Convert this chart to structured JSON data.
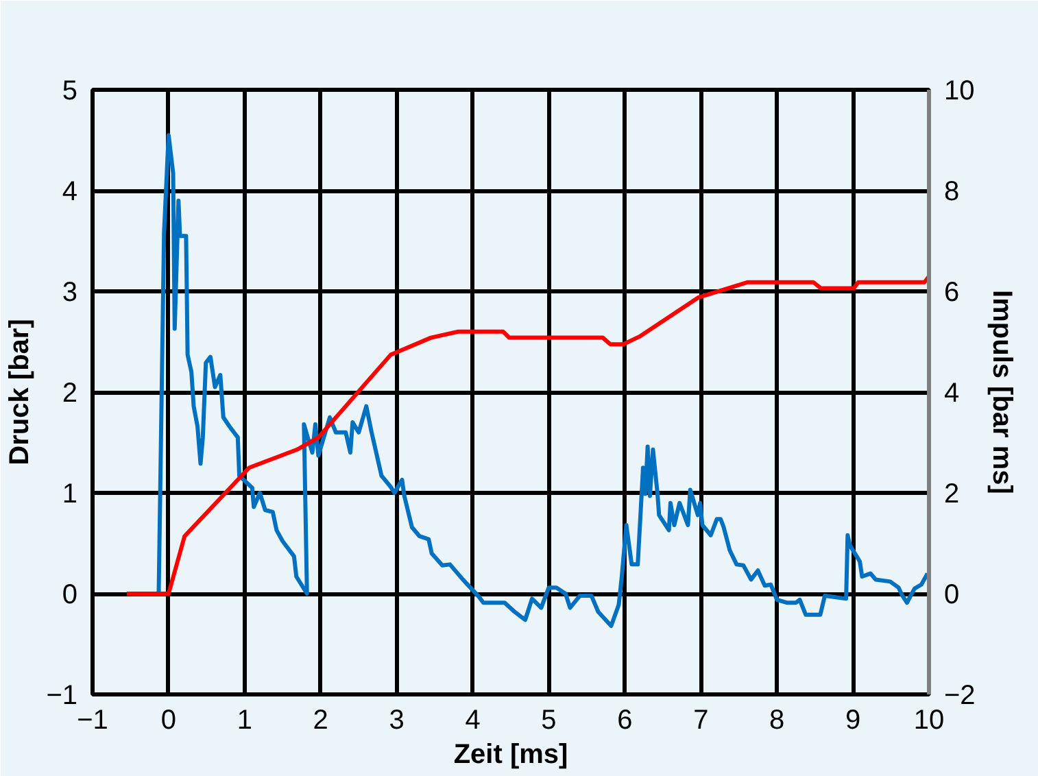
{
  "chart_data": {
    "type": "line",
    "xlabel": "Zeit [ms]",
    "ylabel": "Druck [bar]",
    "y2label": "Impuls [bar ms]",
    "xlim": [
      -1,
      10
    ],
    "xticks": [
      -1,
      0,
      1,
      2,
      3,
      4,
      5,
      6,
      7,
      8,
      9,
      10
    ],
    "ylim": [
      -1,
      5
    ],
    "yticks": [
      -1,
      0,
      1,
      2,
      3,
      4,
      5
    ],
    "y2lim": [
      -2,
      10
    ],
    "y2ticks": [
      -2,
      0,
      2,
      4,
      6,
      8,
      10
    ],
    "grid": true,
    "marker": "none",
    "line_style": "solid",
    "series": [
      {
        "color": "#0070c0",
        "x": [
          -0.55,
          -0.13,
          -0.06,
          0.0,
          0.06,
          0.08,
          0.13,
          0.15,
          0.23,
          0.25,
          0.3,
          0.33,
          0.38,
          0.42,
          0.45,
          0.49,
          0.55,
          0.61,
          0.68,
          0.72,
          0.8,
          0.91,
          0.93,
          1.1,
          1.12,
          1.2,
          1.27,
          1.37,
          1.42,
          1.5,
          1.65,
          1.68,
          1.82,
          1.78,
          1.83,
          1.89,
          1.93,
          1.97,
          2.12,
          2.2,
          2.33,
          2.39,
          2.42,
          2.5,
          2.6,
          2.67,
          2.8,
          2.92,
          2.97,
          3.07,
          3.1,
          3.2,
          3.3,
          3.42,
          3.46,
          3.6,
          3.7,
          3.87,
          4.08,
          4.14,
          4.42,
          4.55,
          4.69,
          4.78,
          4.9,
          5.0,
          5.1,
          5.22,
          5.28,
          5.41,
          5.56,
          5.65,
          5.82,
          5.92,
          5.96,
          6.02,
          6.09,
          6.17,
          6.24,
          6.27,
          6.3,
          6.33,
          6.37,
          6.43,
          6.45,
          6.58,
          6.6,
          6.65,
          6.72,
          6.83,
          6.86,
          6.96,
          6.99,
          7.02,
          7.13,
          7.21,
          7.26,
          7.3,
          7.38,
          7.47,
          7.56,
          7.66,
          7.75,
          7.84,
          7.92,
          8.0,
          8.13,
          8.25,
          8.3,
          8.38,
          8.57,
          8.63,
          8.91,
          8.93,
          8.96,
          9.09,
          9.12,
          9.23,
          9.3,
          9.49,
          9.6,
          9.65,
          9.71,
          9.81,
          9.9,
          9.98
        ],
        "values": [
          0,
          0,
          3.58,
          4.55,
          4.17,
          2.63,
          3.9,
          3.55,
          3.55,
          2.37,
          2.2,
          1.86,
          1.66,
          1.29,
          1.55,
          2.29,
          2.35,
          2.05,
          2.17,
          1.75,
          1.66,
          1.55,
          1.17,
          1.05,
          0.86,
          1.0,
          0.83,
          0.81,
          0.63,
          0.52,
          0.37,
          0.17,
          0,
          1.68,
          1.55,
          1.4,
          1.68,
          1.37,
          1.75,
          1.6,
          1.6,
          1.4,
          1.7,
          1.6,
          1.86,
          1.6,
          1.17,
          1.06,
          1.0,
          1.13,
          0.97,
          0.66,
          0.57,
          0.54,
          0.4,
          0.28,
          0.29,
          0.14,
          -0.03,
          -0.09,
          -0.09,
          -0.18,
          -0.26,
          -0.05,
          -0.14,
          0.06,
          0.06,
          0,
          -0.14,
          -0.02,
          -0.02,
          -0.18,
          -0.32,
          -0.11,
          0.17,
          0.68,
          0.29,
          0.29,
          1.25,
          0.99,
          1.46,
          0.97,
          1.43,
          0.99,
          0.78,
          0.63,
          0.9,
          0.68,
          0.9,
          0.68,
          1.03,
          0.78,
          0.9,
          0.68,
          0.58,
          0.74,
          0.74,
          0.66,
          0.43,
          0.29,
          0.28,
          0.14,
          0.23,
          0.08,
          0.09,
          -0.06,
          -0.09,
          -0.09,
          -0.06,
          -0.21,
          -0.21,
          -0.02,
          -0.05,
          0.58,
          0.48,
          0.32,
          0.17,
          0.2,
          0.14,
          0.12,
          0.06,
          -0.02,
          -0.09,
          0.05,
          0.09,
          0.2
        ]
      },
      {
        "color": "#ff0000",
        "axis": "y2",
        "x": [
          -0.55,
          0.0,
          0.21,
          1.06,
          1.69,
          1.97,
          2.92,
          3.45,
          3.81,
          4.4,
          4.48,
          5.71,
          5.81,
          5.98,
          6.19,
          6.97,
          7.61,
          8.48,
          8.58,
          9.01,
          9.07,
          9.94,
          10.0
        ],
        "values": [
          0,
          0,
          1.14,
          2.5,
          2.86,
          3.1,
          4.74,
          5.08,
          5.2,
          5.2,
          5.08,
          5.08,
          4.95,
          4.95,
          5.1,
          5.88,
          6.18,
          6.18,
          6.06,
          6.06,
          6.18,
          6.18,
          6.3
        ]
      }
    ]
  }
}
